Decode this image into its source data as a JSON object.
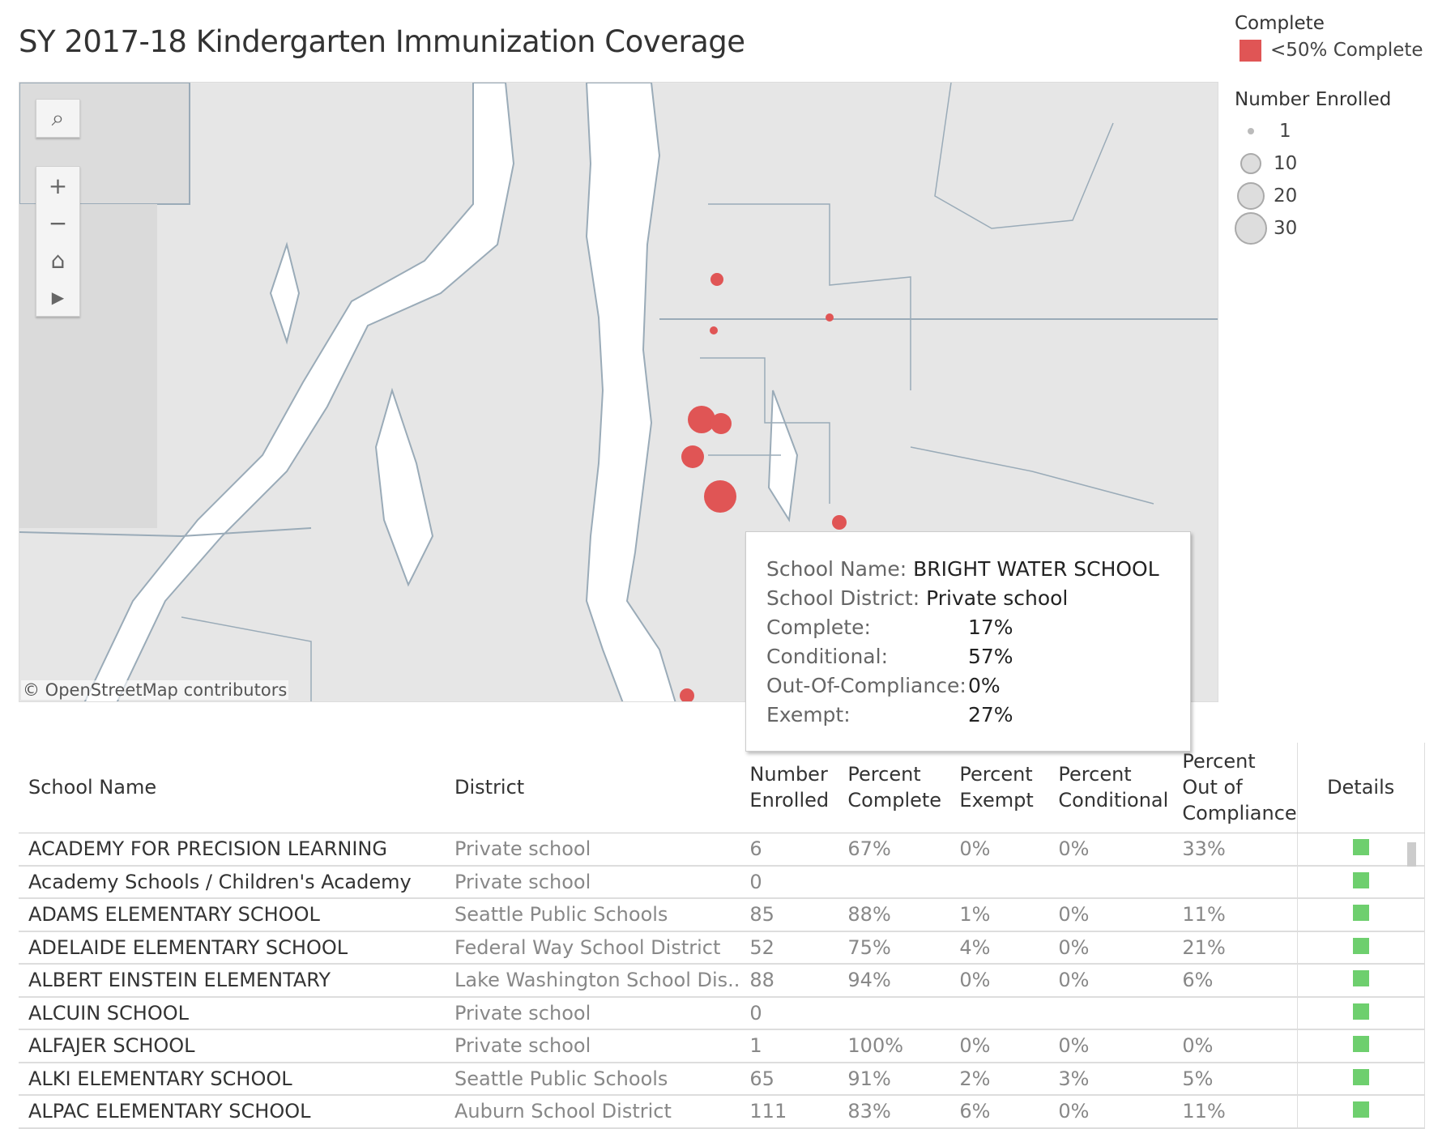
{
  "title": "SY 2017-18 Kindergarten Immunization Coverage",
  "legend": {
    "color_title": "Complete",
    "color_item": "<50% Complete",
    "color": "#e05555",
    "size_title": "Number Enrolled",
    "sizes": [
      "1",
      "10",
      "20",
      "30"
    ]
  },
  "map": {
    "attribution": "© OpenStreetMap contributors",
    "tools": [
      "search-icon",
      "zoom-in-icon",
      "zoom-out-icon",
      "home-icon",
      "expand-icon"
    ]
  },
  "tooltip": {
    "school_label": "School Name:",
    "school": "BRIGHT WATER SCHOOL",
    "district_label": "School District:",
    "district": "Private school",
    "rows": [
      {
        "label": "Complete:",
        "value": "17%"
      },
      {
        "label": "Conditional:",
        "value": "57%"
      },
      {
        "label": "Out-Of-Compliance:",
        "value": "0%"
      },
      {
        "label": "Exempt:",
        "value": "27%"
      }
    ]
  },
  "table": {
    "headers": [
      "School Name",
      "District",
      "Number Enrolled",
      "Percent Complete",
      "Percent Exempt",
      "Percent Conditional",
      "Percent Out of Compliance",
      "Details"
    ],
    "rows": [
      [
        "ACADEMY FOR PRECISION LEARNING",
        "Private school",
        "6",
        "67%",
        "0%",
        "0%",
        "33%"
      ],
      [
        "Academy Schools / Children's Academy",
        "Private school",
        "0",
        "",
        "",
        "",
        ""
      ],
      [
        "ADAMS ELEMENTARY SCHOOL",
        "Seattle Public Schools",
        "85",
        "88%",
        "1%",
        "0%",
        "11%"
      ],
      [
        "ADELAIDE ELEMENTARY SCHOOL",
        "Federal Way School District",
        "52",
        "75%",
        "4%",
        "0%",
        "21%"
      ],
      [
        "ALBERT EINSTEIN ELEMENTARY",
        "Lake Washington School Dis..",
        "88",
        "94%",
        "0%",
        "0%",
        "6%"
      ],
      [
        "ALCUIN SCHOOL",
        "Private school",
        "0",
        "",
        "",
        "",
        ""
      ],
      [
        "ALFAJER SCHOOL",
        "Private school",
        "1",
        "100%",
        "0%",
        "0%",
        "0%"
      ],
      [
        "ALKI ELEMENTARY SCHOOL",
        "Seattle Public Schools",
        "65",
        "91%",
        "2%",
        "3%",
        "5%"
      ],
      [
        "ALPAC ELEMENTARY SCHOOL",
        "Auburn School District",
        "111",
        "83%",
        "6%",
        "0%",
        "11%"
      ]
    ]
  }
}
